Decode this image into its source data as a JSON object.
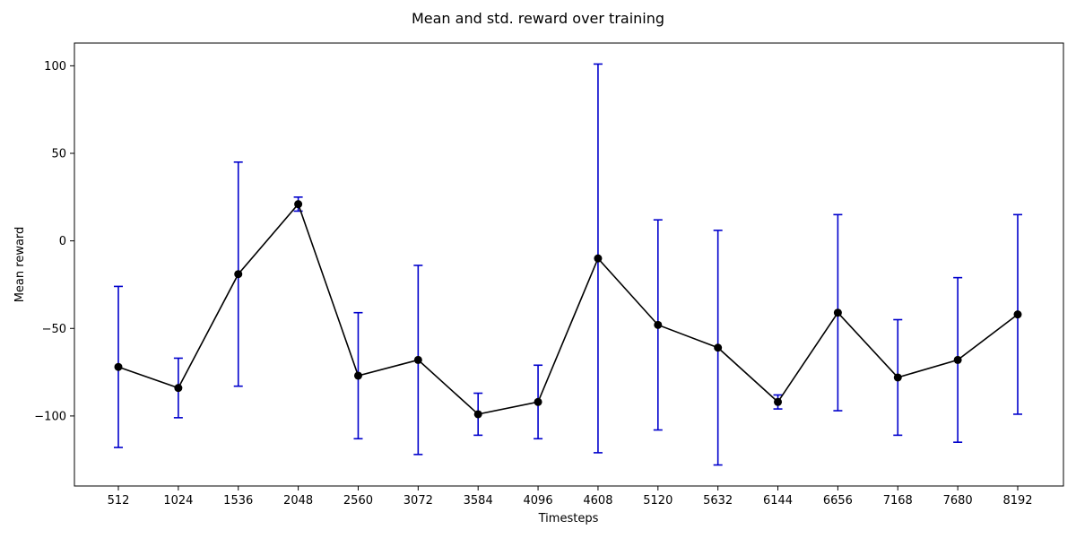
{
  "chart_data": {
    "type": "line",
    "title": "Mean and std. reward over training",
    "xlabel": "Timesteps",
    "ylabel": "Mean reward",
    "categories": [
      "512",
      "1024",
      "1536",
      "2048",
      "2560",
      "3072",
      "3584",
      "4096",
      "4608",
      "5120",
      "5632",
      "6144",
      "6656",
      "7168",
      "7680",
      "8192"
    ],
    "series": [
      {
        "values": [
          -72,
          -84,
          -19,
          21,
          -77,
          -68,
          -99,
          -92,
          -10,
          -48,
          -61,
          -92,
          -41,
          -78,
          -68,
          -42
        ],
        "std": [
          46,
          17,
          64,
          4,
          36,
          54,
          12,
          21,
          111,
          60,
          67,
          4,
          56,
          33,
          47,
          57
        ]
      }
    ],
    "yticks": [
      100,
      50,
      0,
      -50,
      -100
    ],
    "ytick_labels": [
      "100",
      "50",
      "0",
      "−50",
      "−100"
    ],
    "ylim": [
      -140,
      113
    ],
    "line_color": "#000000",
    "marker_color": "#000000",
    "errorbar_color": "#0000cc",
    "grid": false,
    "legend": "none"
  }
}
